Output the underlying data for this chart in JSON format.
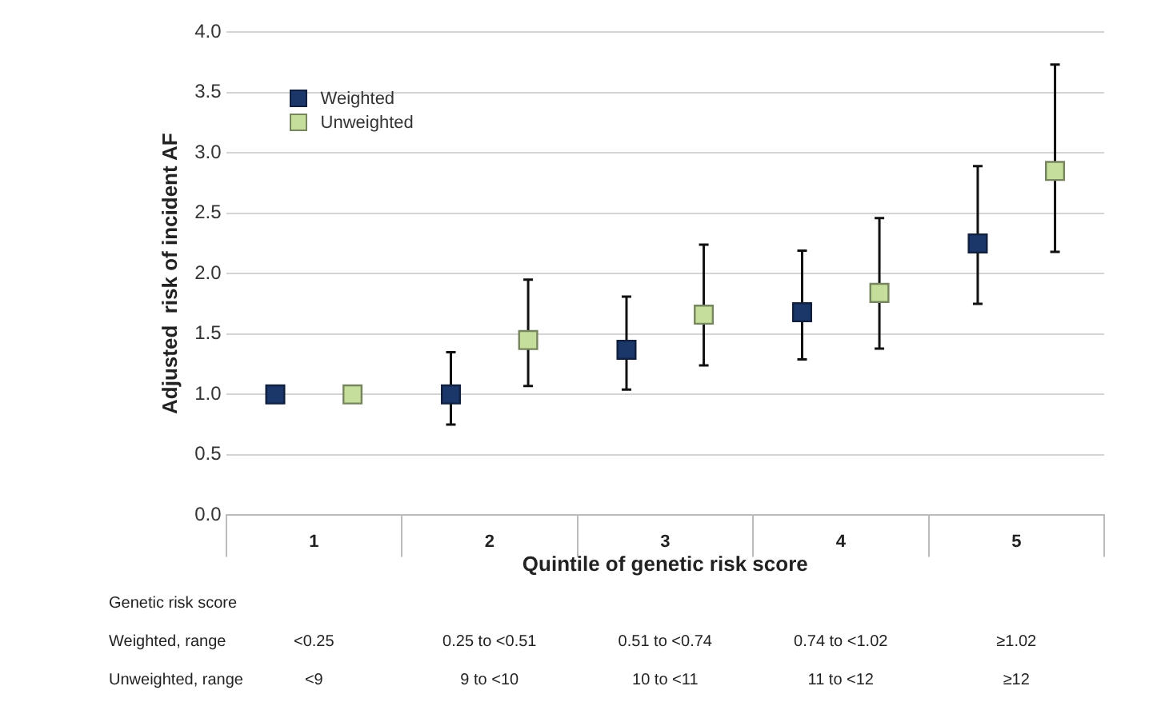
{
  "chart_data": {
    "type": "scatter",
    "xlabel": "Quintile of genetic risk score",
    "ylabel": "Adjusted  risk of incident AF",
    "categories": [
      "1",
      "2",
      "3",
      "4",
      "5"
    ],
    "series": [
      {
        "name": "Weighted",
        "color": "#1b3668",
        "values": [
          1.0,
          1.0,
          1.37,
          1.68,
          2.25
        ],
        "errors": [
          null,
          [
            0.75,
            1.35
          ],
          [
            1.04,
            1.81
          ],
          [
            1.29,
            2.19
          ],
          [
            1.75,
            2.89
          ]
        ]
      },
      {
        "name": "Unweighted",
        "color": "#c6de9c",
        "values": [
          1.0,
          1.45,
          1.66,
          1.84,
          2.85
        ],
        "errors": [
          null,
          [
            1.07,
            1.95
          ],
          [
            1.24,
            2.24
          ],
          [
            1.38,
            2.46
          ],
          [
            2.18,
            3.73
          ]
        ]
      }
    ],
    "ylim": [
      0,
      4
    ],
    "yticks": [
      {
        "value": 0,
        "label": "0.0"
      },
      {
        "value": 0.5,
        "label": "0.5"
      },
      {
        "value": 1,
        "label": "1.0"
      },
      {
        "value": 1.5,
        "label": "1.5"
      },
      {
        "value": 2,
        "label": "2.0"
      },
      {
        "value": 2.5,
        "label": "2.5"
      },
      {
        "value": 3,
        "label": "3.0"
      },
      {
        "value": 3.5,
        "label": "3.5"
      },
      {
        "value": 4,
        "label": "4.0"
      }
    ],
    "grid": "y",
    "legend": "top left",
    "marker": "square",
    "annotations": [
      "Genetic risk score",
      "Weighted, range",
      "<0.25",
      "0.25 to <0.51",
      "0.51 to <0.74",
      "0.74 to <1.02",
      "≥1.02",
      "Unweighted, range",
      "<9",
      "9 to <10",
      "10 to <11",
      "11 to <12",
      "≥12"
    ]
  }
}
